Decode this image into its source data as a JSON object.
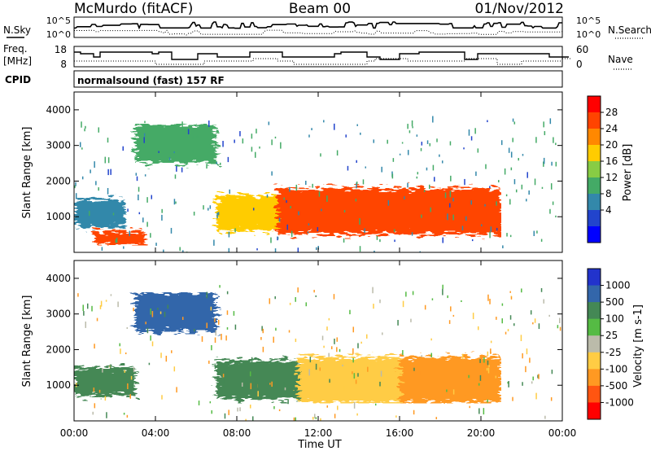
{
  "header": {
    "station": "McMurdo (fitACF)",
    "beam": "Beam 00",
    "date": "01/Nov/2012"
  },
  "param_panels": {
    "nsky_label": "N.Sky",
    "nsearch_label": "N.Search",
    "freq_label": "Freq.",
    "freq_unit": "[MHz]",
    "nave_label": "Nave",
    "cpid_label": "CPID",
    "cpid_text": "normalsound (fast) 157 RF",
    "noise_ticks": [
      "10^5",
      "10^0"
    ],
    "freq_ticks": [
      "18",
      "8"
    ],
    "nave_ticks": [
      "60",
      "0"
    ]
  },
  "colorbars": {
    "power": {
      "label": "Power [dB]",
      "ticks": [
        "28",
        "24",
        "20",
        "16",
        "12",
        "8",
        "4"
      ],
      "colors": [
        "#ff0000",
        "#ff4400",
        "#ff8800",
        "#ffcc00",
        "#88cc44",
        "#44aa66",
        "#3388aa",
        "#2244cc",
        "#0000ff"
      ]
    },
    "velocity": {
      "label": "Velocity [m s-1]",
      "ticks": [
        "1000",
        "500",
        "100",
        "25",
        "-25",
        "-100",
        "-500",
        "-1000"
      ],
      "colors": [
        "#2233cc",
        "#3366aa",
        "#448855",
        "#55bb44",
        "#bbbbaa",
        "#ffcc44",
        "#ff9922",
        "#ff5511",
        "#ff0000"
      ]
    }
  },
  "chart_data": [
    {
      "type": "heatmap",
      "title": "Power",
      "ylabel": "Slant Range [km]",
      "xlabel": "",
      "ylim": [
        0,
        4500
      ],
      "y_ticks": [
        "4000",
        "3000",
        "2000",
        "1000"
      ],
      "x_range_hours": [
        0,
        24
      ],
      "echo_regions": [
        {
          "t_start": 0.0,
          "t_end": 2.5,
          "range_min": 700,
          "range_max": 1500,
          "power_db": 8
        },
        {
          "t_start": 1.0,
          "t_end": 3.5,
          "range_min": 200,
          "range_max": 600,
          "power_db": 24
        },
        {
          "t_start": 3.0,
          "t_end": 7.0,
          "range_min": 2500,
          "range_max": 3600,
          "power_db": 10
        },
        {
          "t_start": 7.0,
          "t_end": 10.0,
          "range_min": 600,
          "range_max": 1600,
          "power_db": 16
        },
        {
          "t_start": 10.0,
          "t_end": 21.0,
          "range_min": 500,
          "range_max": 1800,
          "power_db": 24
        }
      ]
    },
    {
      "type": "heatmap",
      "title": "Velocity",
      "ylabel": "Slant Range [km]",
      "xlabel": "Time UT",
      "ylim": [
        0,
        4500
      ],
      "y_ticks": [
        "4000",
        "3000",
        "2000",
        "1000"
      ],
      "x_ticks": [
        "00:00",
        "04:00",
        "08:00",
        "12:00",
        "16:00",
        "20:00",
        "00:00"
      ],
      "echo_regions": [
        {
          "t_start": 0.0,
          "t_end": 3.0,
          "range_min": 700,
          "range_max": 1500,
          "velocity": 100
        },
        {
          "t_start": 3.0,
          "t_end": 7.0,
          "range_min": 2500,
          "range_max": 3600,
          "velocity": 500
        },
        {
          "t_start": 7.0,
          "t_end": 11.0,
          "range_min": 600,
          "range_max": 1700,
          "velocity": 100
        },
        {
          "t_start": 11.0,
          "t_end": 16.0,
          "range_min": 500,
          "range_max": 1800,
          "velocity": -100
        },
        {
          "t_start": 16.0,
          "t_end": 21.0,
          "range_min": 500,
          "range_max": 1800,
          "velocity": -500
        }
      ]
    }
  ]
}
